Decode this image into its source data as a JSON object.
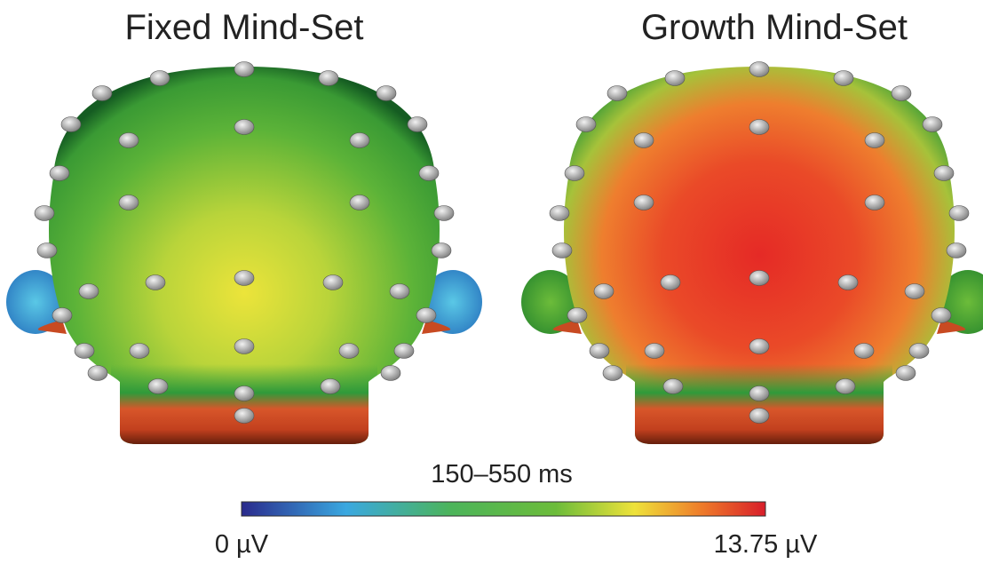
{
  "panels": [
    {
      "title": "Fixed Mind-Set"
    },
    {
      "title": "Growth Mind-Set"
    }
  ],
  "colorbar": {
    "title": "150–550 ms",
    "min_label": "0 µV",
    "max_label": "13.75 µV"
  }
}
